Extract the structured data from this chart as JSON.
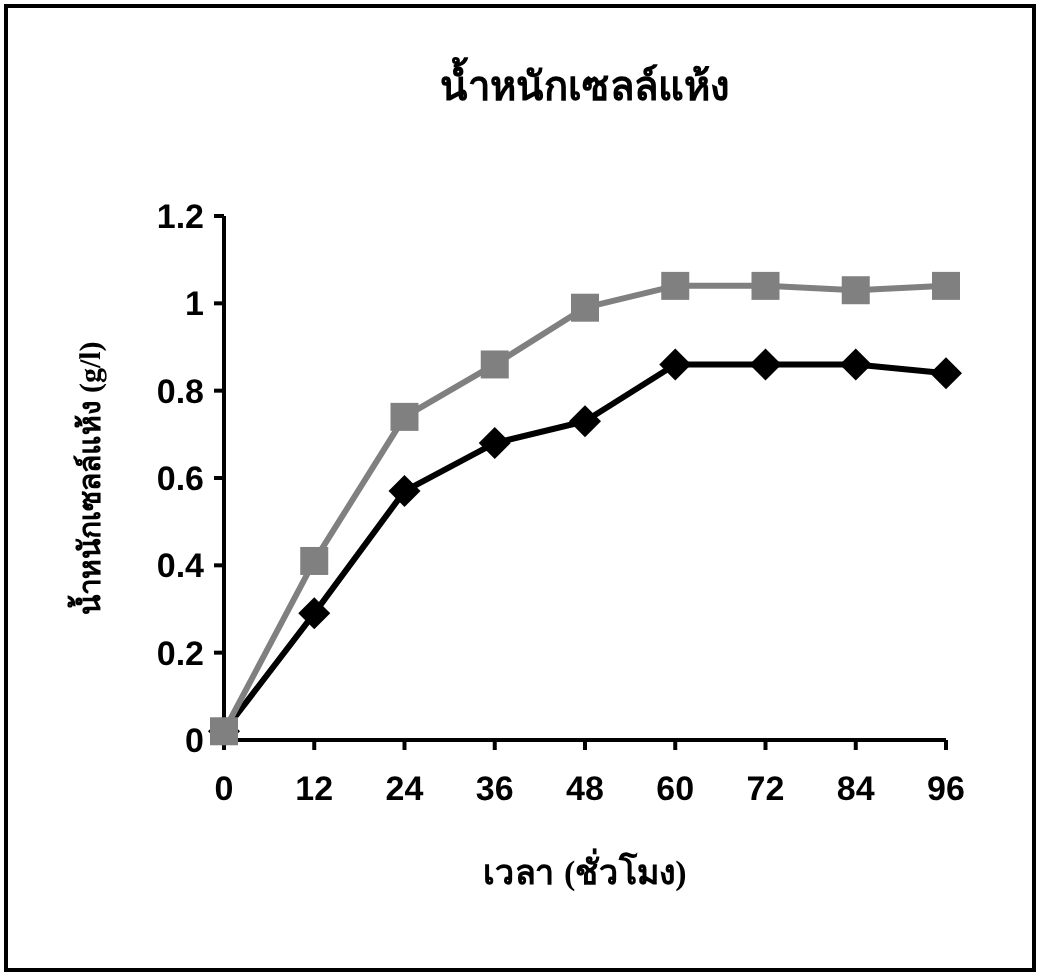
{
  "chart_data": {
    "type": "line",
    "title": "น้ำหนักเซลล์แห้ง",
    "xlabel": "เวลา (ชั่วโมง)",
    "ylabel": "น้ำหนักเซลล์แห้ง (g/l)",
    "x": [
      0,
      12,
      24,
      36,
      48,
      60,
      72,
      84,
      96
    ],
    "xlim": [
      0,
      96
    ],
    "xticks": [
      0,
      12,
      24,
      36,
      48,
      60,
      72,
      84,
      96
    ],
    "ylim": [
      0,
      1.2
    ],
    "yticks": [
      0,
      0.2,
      0.4,
      0.6,
      0.8,
      1,
      1.2
    ],
    "grid": false,
    "series": [
      {
        "color": "#808080",
        "marker": "square",
        "values": [
          0.02,
          0.41,
          0.74,
          0.86,
          0.99,
          1.04,
          1.04,
          1.03,
          1.04
        ]
      },
      {
        "color": "#000000",
        "marker": "diamond",
        "values": [
          0.02,
          0.29,
          0.57,
          0.68,
          0.73,
          0.86,
          0.86,
          0.86,
          0.84
        ]
      }
    ]
  }
}
